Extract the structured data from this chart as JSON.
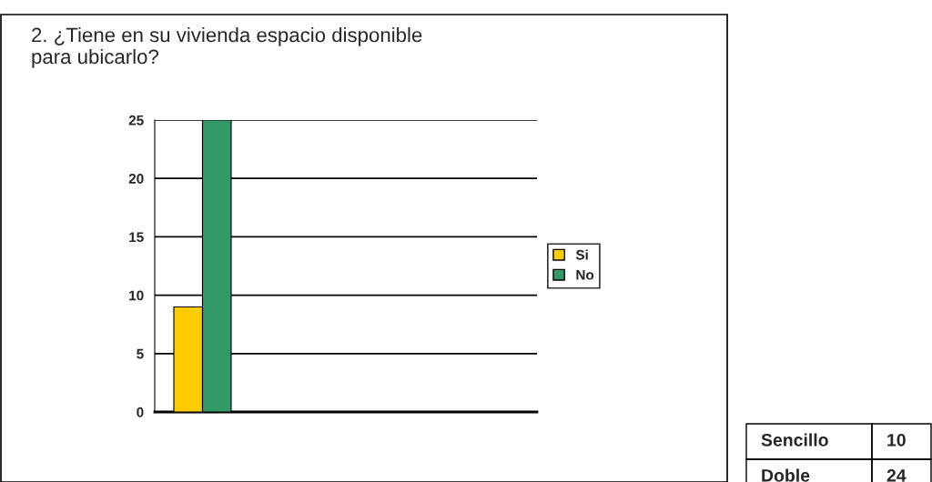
{
  "chart_data": {
    "type": "bar",
    "title": "2. ¿Tiene en su vivienda espacio disponible\npara ubicarlo?",
    "categories": [
      null,
      null,
      null,
      null
    ],
    "series": [
      {
        "name": "Si",
        "color": "#ffcc00",
        "values": [
          9,
          null,
          null,
          null
        ]
      },
      {
        "name": "No",
        "color": "#339966",
        "values": [
          25,
          null,
          null,
          null
        ]
      }
    ],
    "ylim": [
      0,
      25
    ],
    "yticks": [
      0,
      5,
      10,
      15,
      20,
      25
    ],
    "grid": "y",
    "legend": "right",
    "tick_labels": "y",
    "annotations": [
      "Sencillo",
      "10",
      "Doble",
      "24"
    ]
  }
}
